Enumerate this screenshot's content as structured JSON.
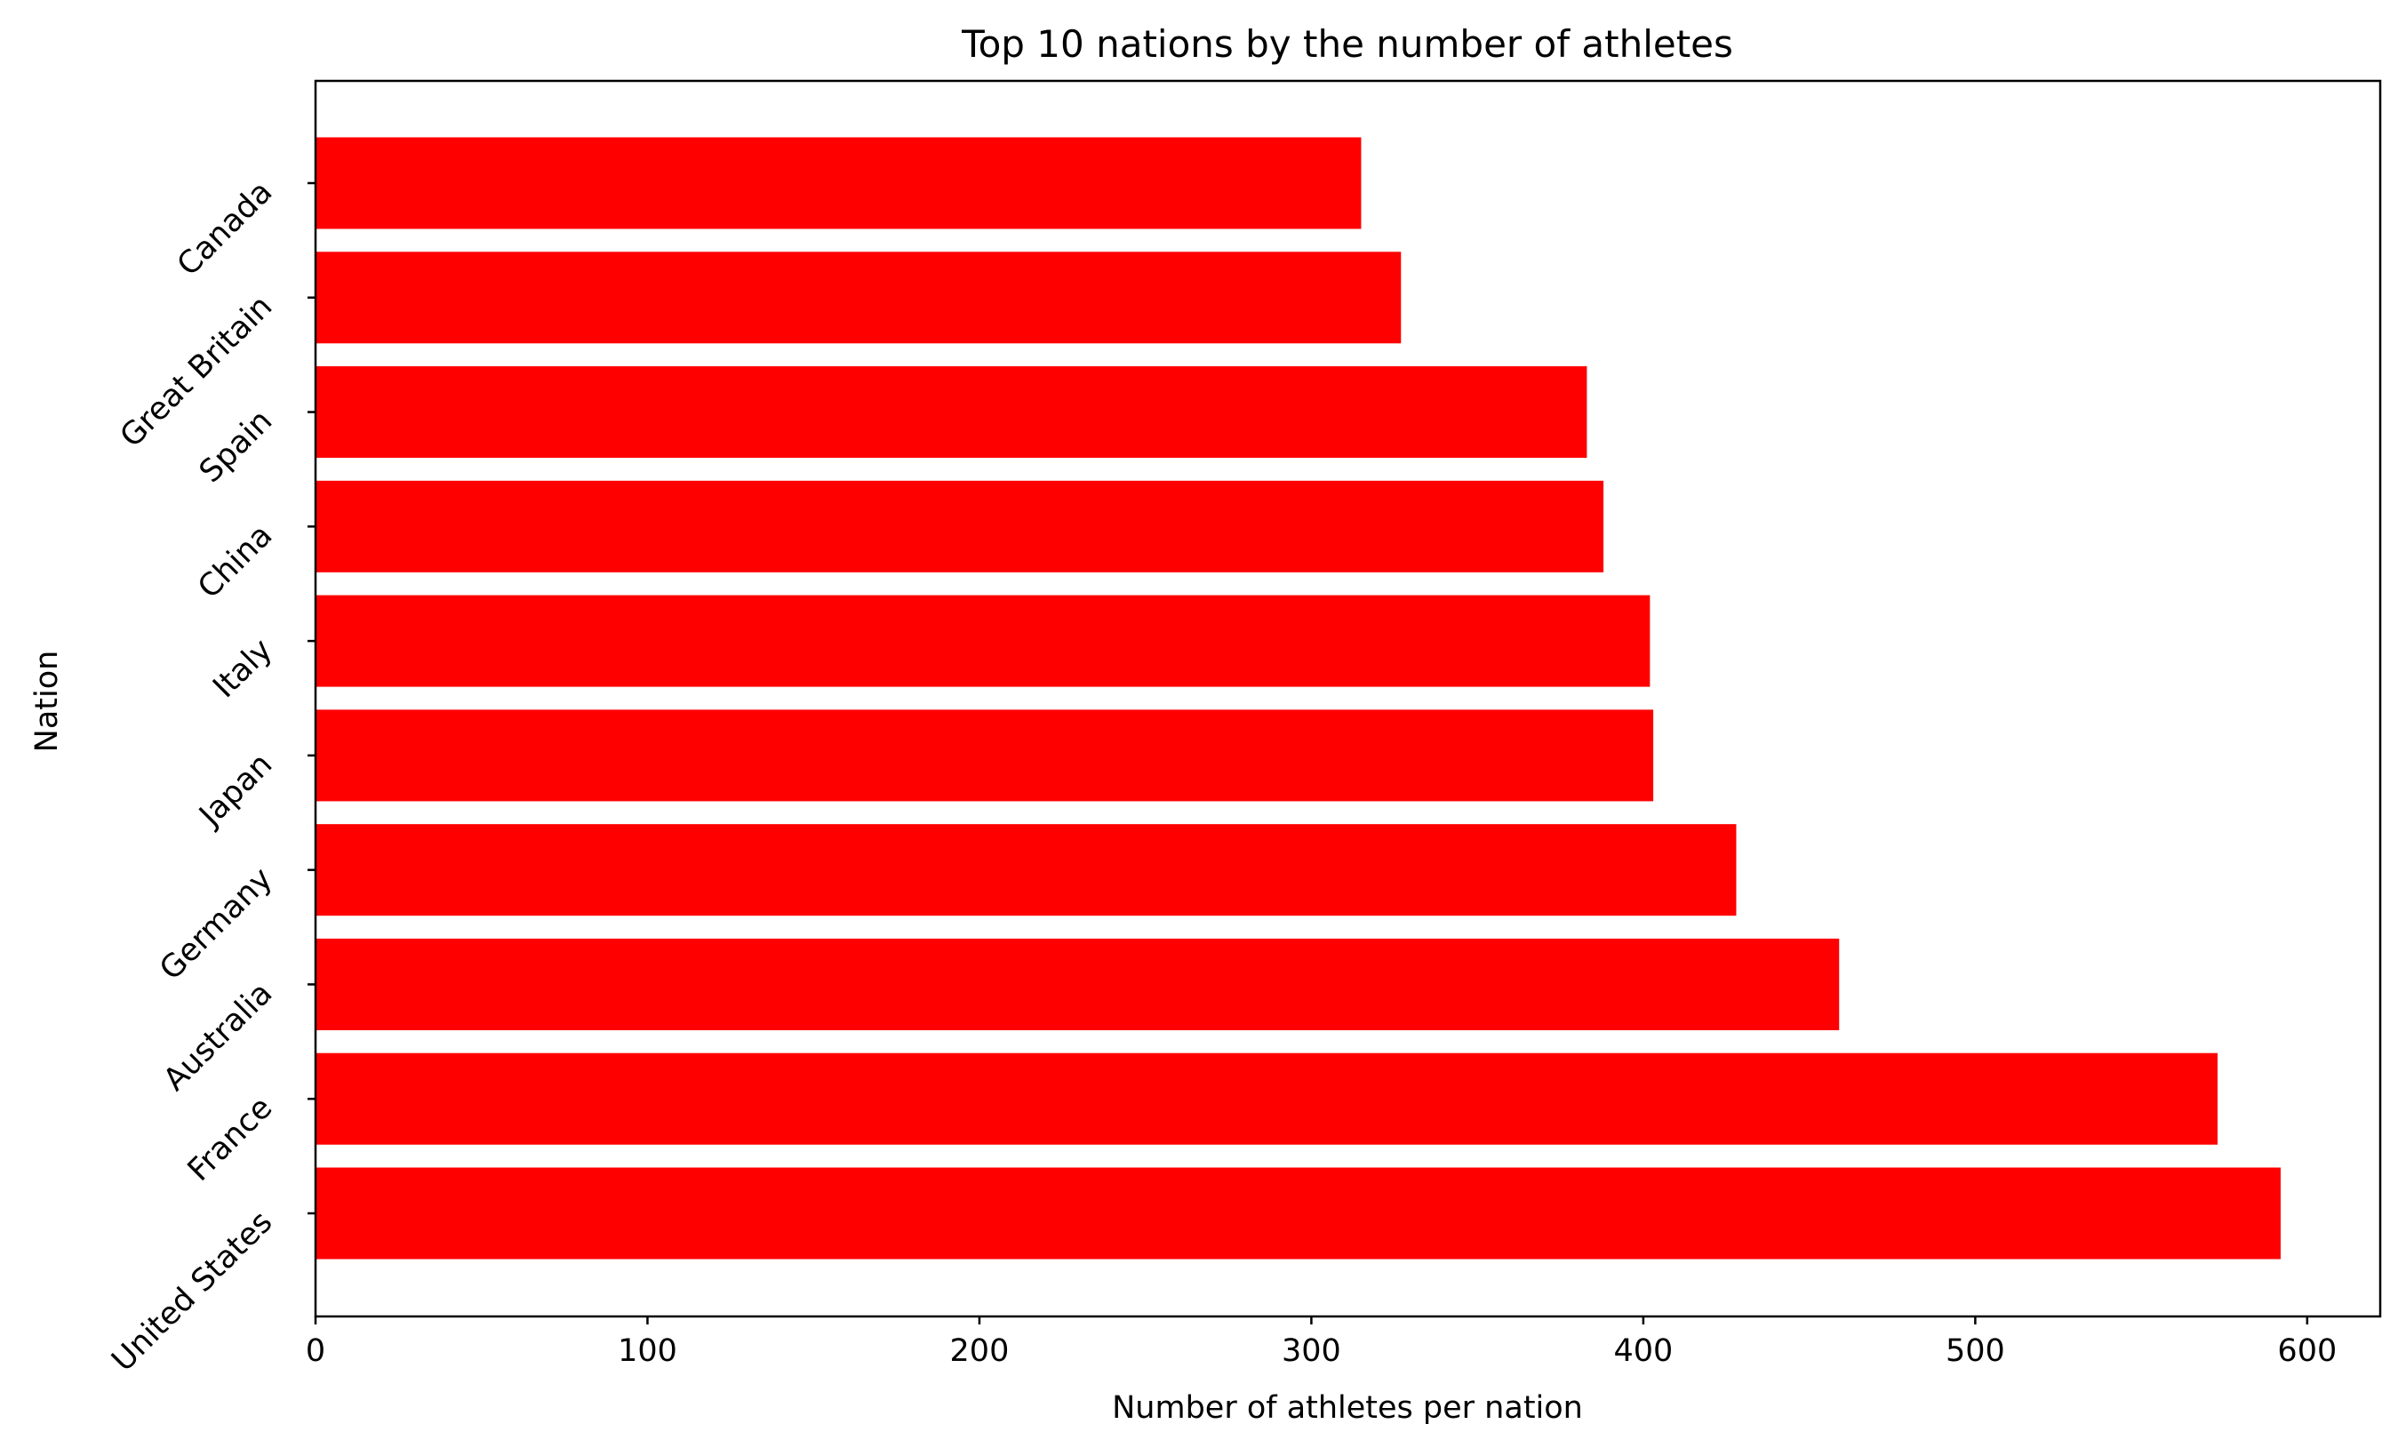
{
  "chart_data": {
    "type": "bar",
    "orientation": "horizontal",
    "title": "Top 10 nations by the number of athletes",
    "xlabel": "Number of athletes per nation",
    "ylabel": "Nation",
    "categories": [
      "United States",
      "France",
      "Australia",
      "Germany",
      "Japan",
      "Italy",
      "China",
      "Spain",
      "Great Britain",
      "Canada"
    ],
    "values": [
      592,
      573,
      459,
      428,
      403,
      402,
      388,
      383,
      327,
      315
    ],
    "xlim": [
      0,
      622
    ],
    "xticks": [
      0,
      100,
      200,
      300,
      400,
      500,
      600
    ],
    "bar_color": "#ff0000",
    "grid": false,
    "legend": "none"
  }
}
